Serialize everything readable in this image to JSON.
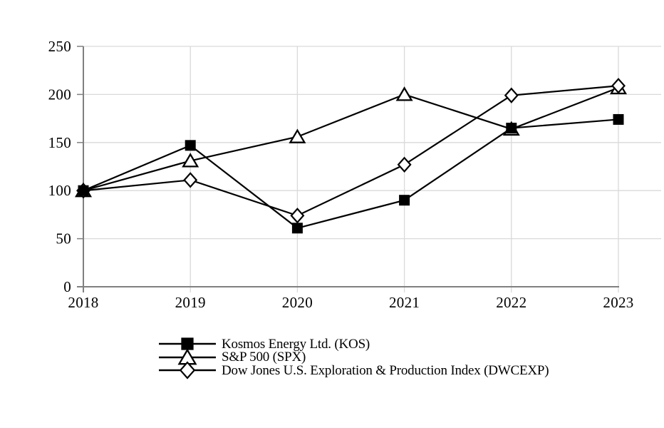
{
  "chart_data": {
    "type": "line",
    "title": "",
    "xlabel": "",
    "ylabel": "",
    "categories": [
      "2018",
      "2019",
      "2020",
      "2021",
      "2022",
      "2023"
    ],
    "y_ticks": [
      0,
      50,
      100,
      150,
      200,
      250
    ],
    "ylim": [
      0,
      250
    ],
    "grid": true,
    "legend_position": "bottom",
    "series": [
      {
        "name": "Kosmos Energy Ltd. (KOS)",
        "marker": "square-filled",
        "color": "#000000",
        "values": [
          100,
          147,
          61,
          90,
          165,
          174
        ]
      },
      {
        "name": "S&P 500 (SPX)",
        "marker": "triangle-open",
        "color": "#000000",
        "values": [
          100,
          131,
          156,
          200,
          164,
          207
        ]
      },
      {
        "name": "Dow Jones U.S. Exploration & Production Index (DWCEXP)",
        "marker": "diamond-open",
        "color": "#000000",
        "values": [
          100,
          111,
          74,
          127,
          199,
          209
        ]
      }
    ],
    "draw_order": [
      1,
      2,
      0
    ],
    "colors": {
      "line": "#000000",
      "axis": "#808080",
      "grid": "#d9d9d9",
      "background": "#ffffff",
      "marker_fill_open": "#ffffff"
    }
  }
}
